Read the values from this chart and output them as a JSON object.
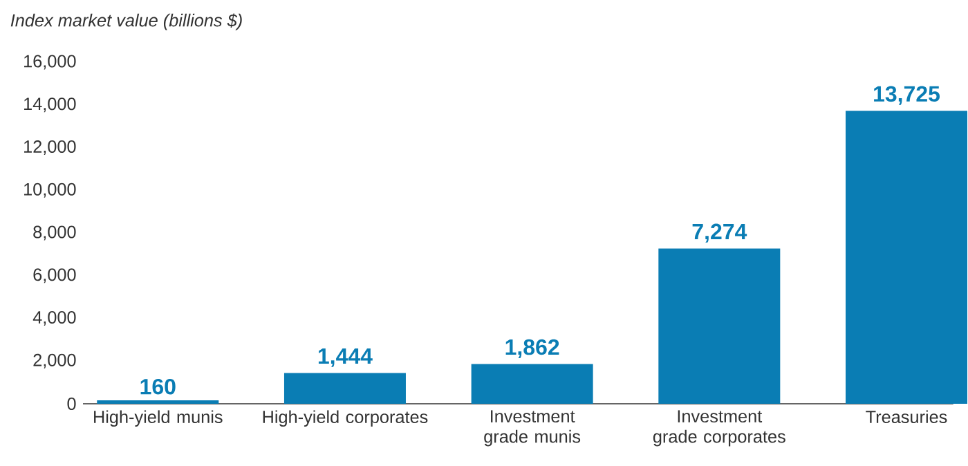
{
  "chart_data": {
    "type": "bar",
    "ylabel": "Index market value (billions $)",
    "categories": [
      "High-yield munis",
      "High-yield corporates",
      "Investment grade munis",
      "Investment grade corporates",
      "Treasuries"
    ],
    "values": [
      160,
      1444,
      1862,
      7274,
      13725
    ],
    "value_labels": [
      "160",
      "1,444",
      "1,862",
      "7,274",
      "13,725"
    ],
    "color": "#0a7db4",
    "ylim": [
      0,
      16000
    ],
    "yticks": [
      0,
      {
        "value": 2000,
        "label": "2,000"
      },
      {
        "value": 4000,
        "label": "4,000"
      },
      {
        "value": 6000,
        "label": "6,000"
      },
      {
        "value": 8000,
        "label": "8,000"
      },
      {
        "value": 10000,
        "label": "10,000"
      },
      {
        "value": 12000,
        "label": "12,000"
      },
      {
        "value": 14000,
        "label": "14,000"
      },
      {
        "value": 16000,
        "label": "16,000"
      }
    ],
    "grid": false
  }
}
